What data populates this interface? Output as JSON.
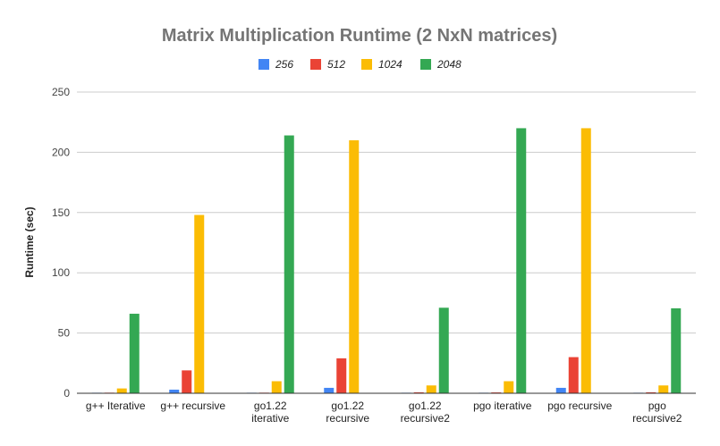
{
  "chart_data": {
    "type": "bar",
    "title": "Matrix Multiplication Runtime (2 NxN matrices)",
    "xlabel": "",
    "ylabel": "Runtime (sec)",
    "ylim": [
      0,
      250
    ],
    "yticks": [
      0,
      50,
      100,
      150,
      200,
      250
    ],
    "grid": true,
    "legend_position": "top",
    "categories": [
      [
        "g++ Iterative"
      ],
      [
        "g++ recursive"
      ],
      [
        "go1.22",
        "iterative"
      ],
      [
        "go1.22",
        "recursive"
      ],
      [
        "go1.22",
        "recursive2"
      ],
      [
        "pgo iterative"
      ],
      [
        "pgo recursive"
      ],
      [
        "pgo",
        "recursive2"
      ]
    ],
    "series": [
      {
        "name": "256",
        "color": "#4285F4",
        "values": [
          0.05,
          3,
          0.1,
          4.5,
          0.1,
          0.1,
          4.5,
          0.1
        ]
      },
      {
        "name": "512",
        "color": "#EA4335",
        "values": [
          0.5,
          19,
          0.5,
          29,
          0.8,
          0.7,
          30,
          0.8
        ]
      },
      {
        "name": "1024",
        "color": "#FBBC04",
        "values": [
          4,
          148,
          10,
          210,
          6.5,
          10,
          220,
          6.5
        ]
      },
      {
        "name": "2048",
        "color": "#34A853",
        "values": [
          66,
          0,
          214,
          0,
          71,
          220,
          0,
          70.5
        ]
      }
    ]
  }
}
